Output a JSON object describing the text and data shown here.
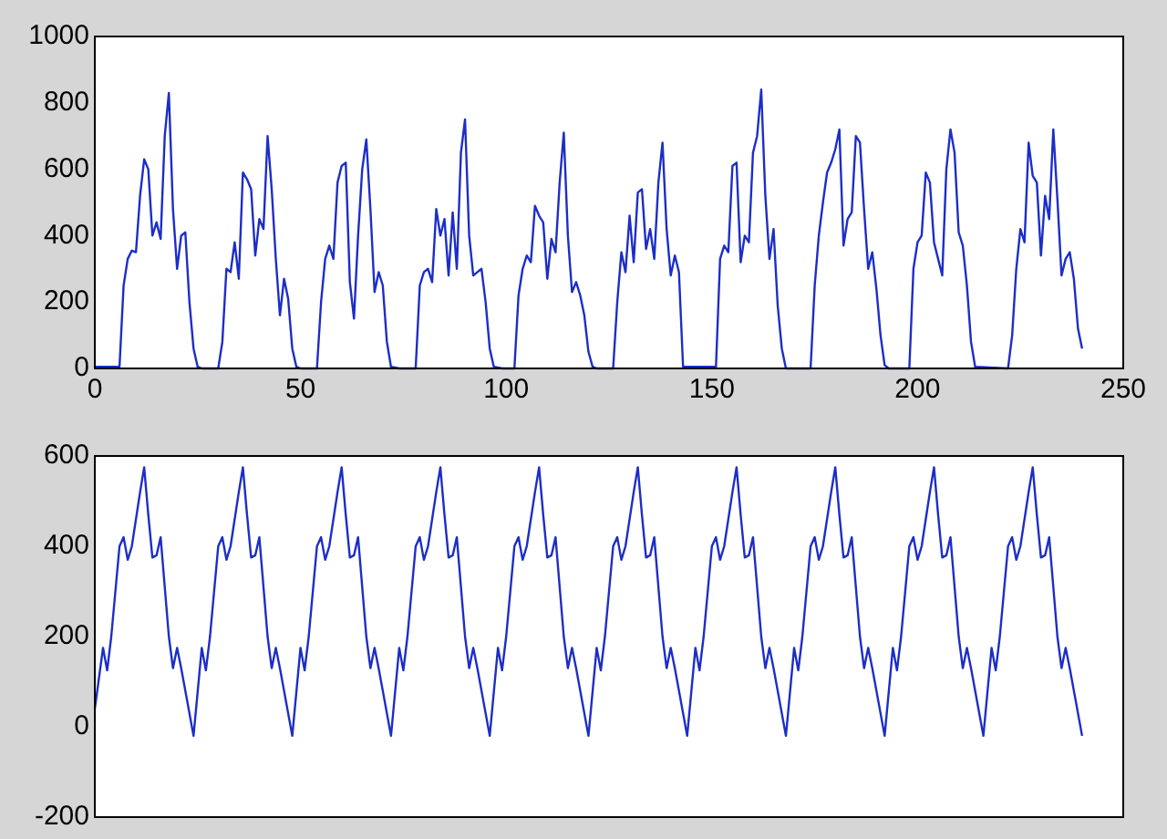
{
  "chart_data": [
    {
      "type": "line",
      "xlim": [
        0,
        250
      ],
      "ylim": [
        0,
        1000
      ],
      "xticks": [
        0,
        50,
        100,
        150,
        200,
        250
      ],
      "yticks": [
        0,
        200,
        400,
        600,
        800,
        {
          "value": 1000,
          "label": "1000"
        }
      ],
      "series": [
        {
          "color": "#1c2ec8",
          "x": [
            0,
            6,
            7,
            8,
            9,
            10,
            11,
            12,
            13,
            14,
            15,
            16,
            17,
            18,
            19,
            20,
            21,
            22,
            23,
            24,
            25,
            26,
            30,
            31,
            32,
            33,
            34,
            35,
            36,
            37,
            38,
            39,
            40,
            41,
            42,
            43,
            44,
            45,
            46,
            47,
            48,
            49,
            50,
            54,
            55,
            56,
            57,
            58,
            59,
            60,
            61,
            62,
            63,
            64,
            65,
            66,
            67,
            68,
            69,
            70,
            71,
            72,
            74,
            78,
            79,
            80,
            81,
            82,
            83,
            84,
            85,
            86,
            87,
            88,
            89,
            90,
            91,
            92,
            93,
            94,
            95,
            96,
            97,
            99,
            102,
            103,
            104,
            105,
            106,
            107,
            108,
            109,
            110,
            111,
            112,
            113,
            114,
            115,
            116,
            117,
            118,
            119,
            120,
            121,
            122,
            126,
            127,
            128,
            129,
            130,
            131,
            132,
            133,
            134,
            135,
            136,
            137,
            138,
            139,
            140,
            141,
            142,
            143,
            148,
            151,
            152,
            153,
            154,
            155,
            156,
            157,
            158,
            159,
            160,
            161,
            162,
            163,
            164,
            165,
            166,
            167,
            168,
            174,
            175,
            176,
            177,
            178,
            179,
            180,
            181,
            182,
            183,
            184,
            185,
            186,
            187,
            188,
            189,
            190,
            191,
            192,
            193,
            198,
            199,
            200,
            201,
            202,
            203,
            204,
            205,
            206,
            207,
            208,
            209,
            210,
            211,
            212,
            213,
            214,
            222,
            223,
            224,
            225,
            226,
            227,
            228,
            229,
            230,
            231,
            232,
            233,
            234,
            235,
            236,
            237,
            238,
            239,
            240
          ],
          "values": [
            5,
            5,
            250,
            330,
            355,
            350,
            520,
            630,
            600,
            400,
            440,
            390,
            700,
            830,
            480,
            300,
            400,
            410,
            200,
            60,
            5,
            0,
            0,
            80,
            300,
            290,
            380,
            270,
            590,
            570,
            540,
            340,
            450,
            420,
            700,
            540,
            330,
            160,
            270,
            210,
            60,
            5,
            0,
            0,
            200,
            330,
            370,
            330,
            560,
            610,
            620,
            260,
            150,
            400,
            600,
            690,
            480,
            230,
            290,
            250,
            80,
            5,
            0,
            0,
            250,
            290,
            300,
            260,
            480,
            400,
            450,
            280,
            470,
            300,
            650,
            750,
            400,
            280,
            290,
            300,
            200,
            60,
            5,
            0,
            0,
            220,
            300,
            340,
            320,
            490,
            460,
            440,
            270,
            390,
            350,
            560,
            710,
            400,
            230,
            260,
            220,
            160,
            50,
            5,
            0,
            0,
            200,
            350,
            290,
            460,
            320,
            530,
            540,
            360,
            420,
            330,
            560,
            680,
            420,
            280,
            340,
            290,
            5,
            5,
            5,
            330,
            370,
            350,
            610,
            620,
            320,
            400,
            380,
            650,
            700,
            840,
            520,
            330,
            420,
            190,
            60,
            0,
            0,
            250,
            400,
            500,
            590,
            620,
            660,
            720,
            370,
            450,
            470,
            700,
            680,
            480,
            300,
            350,
            240,
            100,
            10,
            0,
            0,
            300,
            380,
            400,
            590,
            560,
            380,
            330,
            280,
            600,
            720,
            650,
            410,
            370,
            250,
            80,
            5,
            0,
            100,
            300,
            420,
            380,
            680,
            580,
            560,
            340,
            520,
            450,
            720,
            510,
            280,
            330,
            350,
            270,
            120,
            60
          ]
        }
      ]
    },
    {
      "type": "line",
      "xlim": [
        0,
        250
      ],
      "ylim": [
        -200,
        600
      ],
      "xticks": [
        0,
        50,
        100,
        150,
        200,
        250
      ],
      "yticks": [
        -200,
        0,
        200,
        400,
        600
      ],
      "tick_labels": "y",
      "series": [
        {
          "color": "#1c2ec8",
          "x": [
            0,
            2,
            3,
            4,
            6,
            7,
            8,
            9,
            11,
            12,
            13,
            14,
            15,
            16,
            18,
            19,
            20,
            21,
            24,
            26,
            27,
            28,
            30,
            31,
            32,
            33,
            35,
            36,
            37,
            38,
            39,
            40,
            42,
            43,
            44,
            45,
            48,
            50,
            51,
            52,
            54,
            55,
            56,
            57,
            59,
            60,
            61,
            62,
            63,
            64,
            66,
            67,
            68,
            69,
            72,
            74,
            75,
            76,
            78,
            79,
            80,
            81,
            83,
            84,
            85,
            86,
            87,
            88,
            90,
            91,
            92,
            93,
            96,
            98,
            99,
            100,
            102,
            103,
            104,
            105,
            107,
            108,
            109,
            110,
            111,
            112,
            114,
            115,
            116,
            117,
            120,
            122,
            123,
            124,
            126,
            127,
            128,
            129,
            131,
            132,
            133,
            134,
            135,
            136,
            138,
            139,
            140,
            141,
            144,
            146,
            147,
            148,
            150,
            151,
            152,
            153,
            155,
            156,
            157,
            158,
            159,
            160,
            162,
            163,
            164,
            165,
            168,
            170,
            171,
            172,
            174,
            175,
            176,
            177,
            179,
            180,
            181,
            182,
            183,
            184,
            186,
            187,
            188,
            189,
            192,
            194,
            195,
            196,
            198,
            199,
            200,
            201,
            203,
            204,
            205,
            206,
            207,
            208,
            210,
            211,
            212,
            213,
            216,
            218,
            219,
            220,
            222,
            223,
            224,
            225,
            227,
            228,
            229,
            230,
            231,
            232,
            234,
            235,
            236,
            237,
            240
          ],
          "values": [
            40,
            175,
            125,
            200,
            400,
            420,
            370,
            400,
            520,
            575,
            470,
            375,
            380,
            420,
            200,
            130,
            175,
            130,
            -20,
            175,
            125,
            200,
            400,
            420,
            370,
            400,
            520,
            575,
            470,
            375,
            380,
            420,
            200,
            130,
            175,
            130,
            -20,
            175,
            125,
            200,
            400,
            420,
            370,
            400,
            520,
            575,
            470,
            375,
            380,
            420,
            200,
            130,
            175,
            130,
            -20,
            175,
            125,
            200,
            400,
            420,
            370,
            400,
            520,
            575,
            470,
            375,
            380,
            420,
            200,
            130,
            175,
            130,
            -20,
            175,
            125,
            200,
            400,
            420,
            370,
            400,
            520,
            575,
            470,
            375,
            380,
            420,
            200,
            130,
            175,
            130,
            -20,
            175,
            125,
            200,
            400,
            420,
            370,
            400,
            520,
            575,
            470,
            375,
            380,
            420,
            200,
            130,
            175,
            130,
            -20,
            175,
            125,
            200,
            400,
            420,
            370,
            400,
            520,
            575,
            470,
            375,
            380,
            420,
            200,
            130,
            175,
            130,
            -20,
            175,
            125,
            200,
            400,
            420,
            370,
            400,
            520,
            575,
            470,
            375,
            380,
            420,
            200,
            130,
            175,
            130,
            -20,
            175,
            125,
            200,
            400,
            420,
            370,
            400,
            520,
            575,
            470,
            375,
            380,
            420,
            200,
            130,
            175,
            130,
            -20,
            175,
            125,
            200,
            400,
            420,
            370,
            400,
            520,
            575,
            470,
            375,
            380,
            420,
            200,
            130,
            175,
            130,
            -20
          ]
        }
      ]
    }
  ]
}
